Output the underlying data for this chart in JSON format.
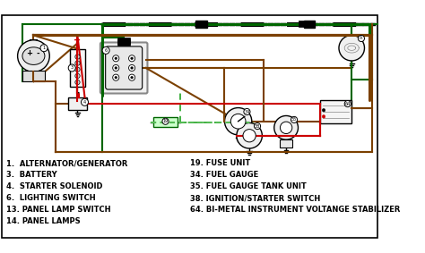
{
  "bg_color": "#ffffff",
  "brown": "#7B4000",
  "green_dk": "#006600",
  "green_lt": "#33AA33",
  "red": "#CC0000",
  "black": "#000000",
  "gray": "#888888",
  "lgray": "#cccccc",
  "white": "#ffffff",
  "lw_thick": 2.2,
  "lw_med": 1.5,
  "lw_thin": 1.0,
  "legend_left": [
    "1.  ALTERNATOR/GENERATOR",
    "3.  BATTERY",
    "4.  STARTER SOLENOID",
    "6.  LIGHTING SWITCH",
    "13. PANEL LAMP SWITCH",
    "14. PANEL LAMPS"
  ],
  "legend_right": [
    "19. FUSE UNIT",
    "34. FUEL GAUGE",
    "35. FUEL GAUGE TANK UNIT",
    "38. IGNITION/STARTER SWITCH",
    "64. BI-METAL INSTRUMENT VOLTANGE STABILIZER"
  ]
}
